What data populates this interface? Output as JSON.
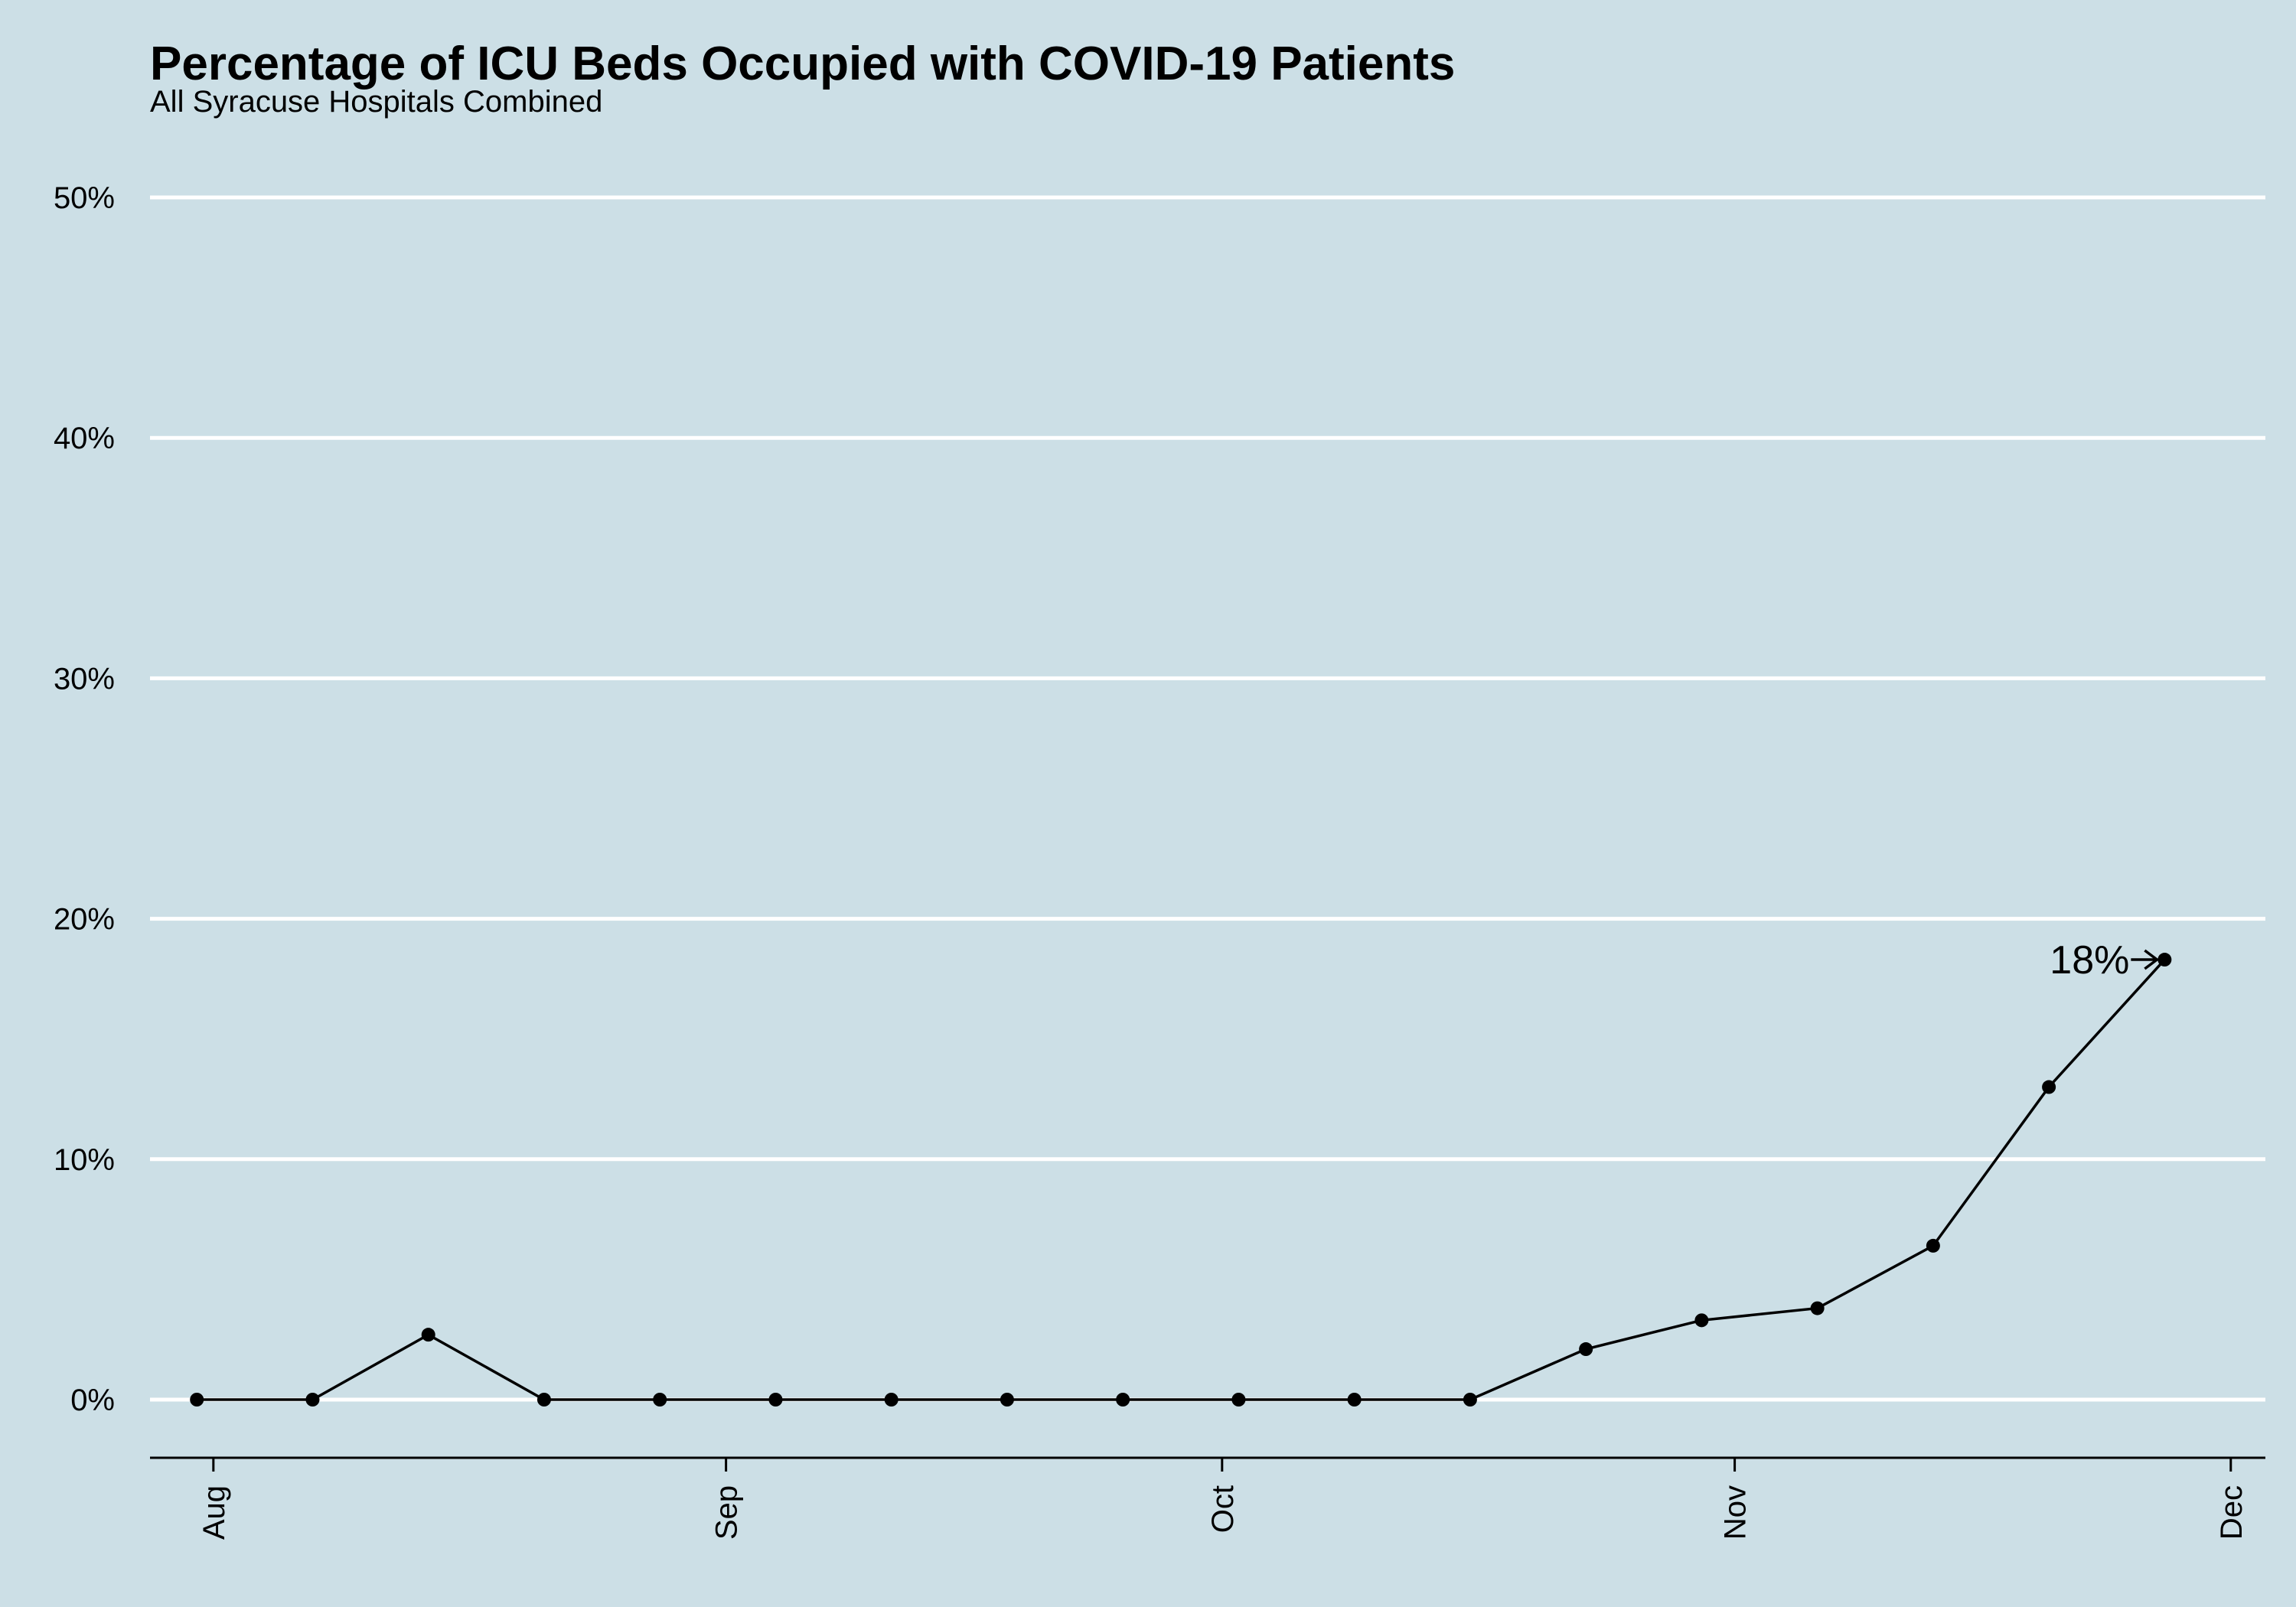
{
  "chart_data": {
    "type": "line",
    "title": "Percentage of ICU Beds Occupied with COVID-19 Patients",
    "subtitle": "All Syracuse Hospitals Combined",
    "xlabel": "",
    "ylabel": "",
    "ylim": [
      0,
      50
    ],
    "yticks": [
      {
        "value": 0,
        "label": "0%"
      },
      {
        "value": 10,
        "label": "10%"
      },
      {
        "value": 20,
        "label": "20%"
      },
      {
        "value": 30,
        "label": "30%"
      },
      {
        "value": 40,
        "label": "40%"
      },
      {
        "value": 50,
        "label": "50%"
      }
    ],
    "xlim": [
      "2020-07-29",
      "2020-12-03"
    ],
    "xticks": [
      {
        "value": "2020-08-01",
        "label": "Aug"
      },
      {
        "value": "2020-09-01",
        "label": "Sep"
      },
      {
        "value": "2020-10-01",
        "label": "Oct"
      },
      {
        "value": "2020-11-01",
        "label": "Nov"
      },
      {
        "value": "2020-12-01",
        "label": "Dec"
      }
    ],
    "grid": "horizontal major lines",
    "legend": "none",
    "series": [
      {
        "points": [
          {
            "x": "2020-07-31",
            "y": 0
          },
          {
            "x": "2020-08-07",
            "y": 0
          },
          {
            "x": "2020-08-14",
            "y": 2.7
          },
          {
            "x": "2020-08-21",
            "y": 0
          },
          {
            "x": "2020-08-28",
            "y": 0
          },
          {
            "x": "2020-09-04",
            "y": 0
          },
          {
            "x": "2020-09-11",
            "y": 0
          },
          {
            "x": "2020-09-18",
            "y": 0
          },
          {
            "x": "2020-09-25",
            "y": 0
          },
          {
            "x": "2020-10-02",
            "y": 0
          },
          {
            "x": "2020-10-09",
            "y": 0
          },
          {
            "x": "2020-10-16",
            "y": 0
          },
          {
            "x": "2020-10-23",
            "y": 2.1
          },
          {
            "x": "2020-10-30",
            "y": 3.3
          },
          {
            "x": "2020-11-06",
            "y": 3.8
          },
          {
            "x": "2020-11-13",
            "y": 6.4
          },
          {
            "x": "2020-11-20",
            "y": 13.0
          },
          {
            "x": "2020-11-27",
            "y": 18.3
          }
        ]
      }
    ],
    "annotation": {
      "text": "18%",
      "x": "2020-11-27",
      "y": 18.3
    }
  },
  "colors": {
    "background": "#ccdfe6",
    "gridline": "#ffffff",
    "line": "#000000",
    "point": "#000000",
    "axis": "#000000"
  }
}
